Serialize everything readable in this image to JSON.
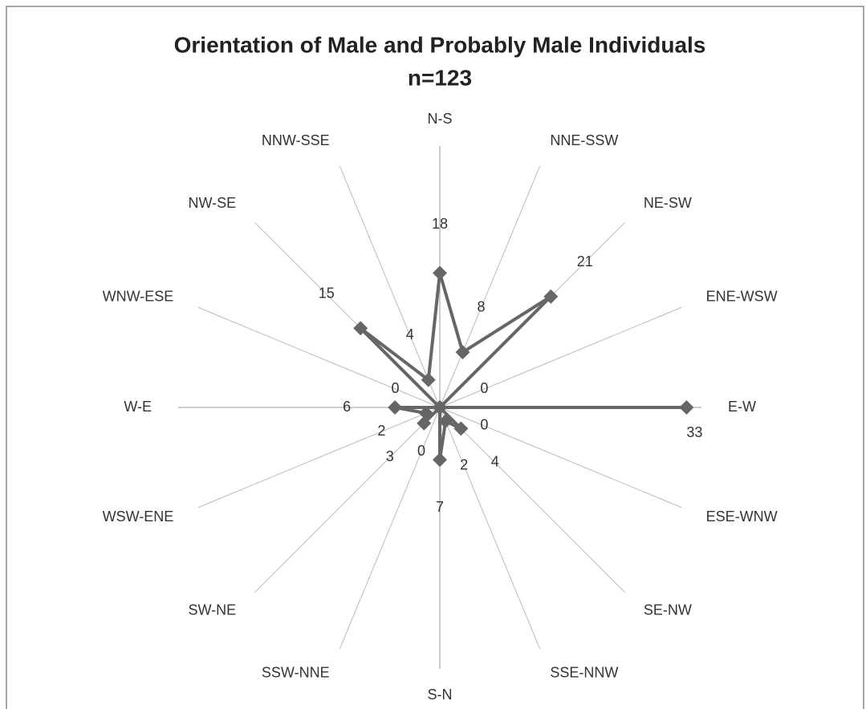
{
  "chart_data": {
    "type": "radar",
    "title": "Orientation of Male and Probably Male Individuals",
    "subtitle": "n=123",
    "categories": [
      "N-S",
      "NNE-SSW",
      "NE-SW",
      "ENE-WSW",
      "E-W",
      "ESE-WNW",
      "SE-NW",
      "SSE-NNW",
      "S-N",
      "SSW-NNE",
      "SW-NE",
      "WSW-ENE",
      "W-E",
      "WNW-ESE",
      "NW-SE",
      "NNW-SSE"
    ],
    "values": [
      18,
      8,
      21,
      0,
      33,
      0,
      4,
      2,
      7,
      0,
      3,
      2,
      6,
      0,
      15,
      4
    ],
    "color": "#666666",
    "ylim": [
      0,
      35
    ]
  }
}
